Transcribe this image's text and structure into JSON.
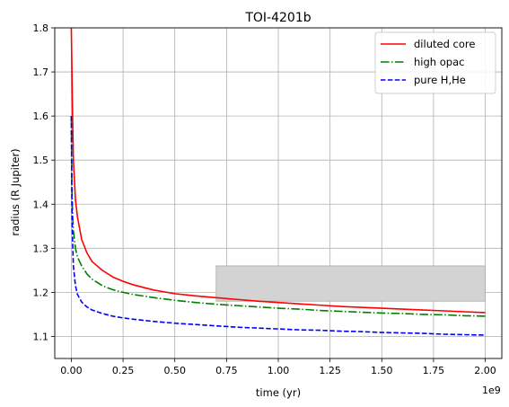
{
  "chart_data": {
    "type": "line",
    "title": "TOI-4201b",
    "xlabel": "time (yr)",
    "ylabel": "radius (R Jupiter)",
    "x_offset_label": "1e9",
    "xlim": [
      -0.08,
      2.08
    ],
    "ylim": [
      1.05,
      1.8
    ],
    "x_unit_multiplier": 1000000000,
    "xticks": [
      0.0,
      0.25,
      0.5,
      0.75,
      1.0,
      1.25,
      1.5,
      1.75,
      2.0
    ],
    "xtick_labels": [
      "0.00",
      "0.25",
      "0.50",
      "0.75",
      "1.00",
      "1.25",
      "1.50",
      "1.75",
      "2.00"
    ],
    "yticks": [
      1.1,
      1.2,
      1.3,
      1.4,
      1.5,
      1.6,
      1.7,
      1.8
    ],
    "ytick_labels": [
      "1.1",
      "1.2",
      "1.3",
      "1.4",
      "1.5",
      "1.6",
      "1.7",
      "1.8"
    ],
    "grid": true,
    "legend_position": "top-right",
    "shaded_region": {
      "x": [
        0.7,
        2.0
      ],
      "y": [
        1.18,
        1.26
      ],
      "color": "#d3d3d3"
    },
    "series": [
      {
        "name": "diluted core",
        "color": "#ff0000",
        "dash": "solid",
        "x": [
          0.0,
          0.003,
          0.006,
          0.01,
          0.02,
          0.03,
          0.05,
          0.075,
          0.1,
          0.15,
          0.2,
          0.25,
          0.3,
          0.4,
          0.5,
          0.6,
          0.7,
          0.8,
          0.9,
          1.0,
          1.1,
          1.2,
          1.3,
          1.4,
          1.5,
          1.6,
          1.7,
          1.8,
          1.9,
          2.0
        ],
        "y": [
          1.8,
          1.7,
          1.6,
          1.5,
          1.41,
          1.37,
          1.32,
          1.29,
          1.27,
          1.25,
          1.235,
          1.225,
          1.217,
          1.205,
          1.197,
          1.192,
          1.188,
          1.184,
          1.18,
          1.177,
          1.174,
          1.171,
          1.168,
          1.166,
          1.164,
          1.162,
          1.16,
          1.158,
          1.156,
          1.154
        ]
      },
      {
        "name": "high opac",
        "color": "#008000",
        "dash": "dashdot",
        "x": [
          0.0,
          0.003,
          0.006,
          0.01,
          0.02,
          0.03,
          0.05,
          0.075,
          0.1,
          0.15,
          0.2,
          0.25,
          0.3,
          0.4,
          0.5,
          0.6,
          0.7,
          0.8,
          0.9,
          1.0,
          1.1,
          1.2,
          1.3,
          1.4,
          1.5,
          1.6,
          1.7,
          1.8,
          1.9,
          2.0
        ],
        "y": [
          1.6,
          1.45,
          1.38,
          1.34,
          1.3,
          1.28,
          1.26,
          1.242,
          1.23,
          1.215,
          1.206,
          1.2,
          1.195,
          1.188,
          1.182,
          1.177,
          1.173,
          1.17,
          1.167,
          1.164,
          1.162,
          1.159,
          1.157,
          1.155,
          1.153,
          1.152,
          1.15,
          1.149,
          1.147,
          1.146
        ]
      },
      {
        "name": "pure H,He",
        "color": "#0000ff",
        "dash": "dashed",
        "x": [
          0.0,
          0.002,
          0.004,
          0.007,
          0.01,
          0.02,
          0.03,
          0.05,
          0.075,
          0.1,
          0.15,
          0.2,
          0.25,
          0.3,
          0.4,
          0.5,
          0.6,
          0.7,
          0.8,
          0.9,
          1.0,
          1.1,
          1.2,
          1.3,
          1.4,
          1.5,
          1.6,
          1.7,
          1.8,
          1.9,
          2.0
        ],
        "y": [
          1.6,
          1.45,
          1.36,
          1.3,
          1.26,
          1.215,
          1.195,
          1.178,
          1.167,
          1.16,
          1.152,
          1.146,
          1.142,
          1.139,
          1.134,
          1.13,
          1.127,
          1.124,
          1.121,
          1.119,
          1.117,
          1.115,
          1.114,
          1.112,
          1.111,
          1.109,
          1.108,
          1.107,
          1.105,
          1.104,
          1.103
        ]
      }
    ]
  }
}
